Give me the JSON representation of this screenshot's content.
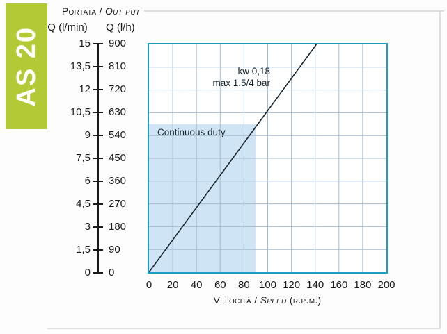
{
  "banner": {
    "label": "AS 20"
  },
  "output_scale": {
    "title_normal": "Portata / ",
    "title_italic": "Out put",
    "col_left_header": "Q (l/min)",
    "col_right_header": "Q (l/h)",
    "lmin_labels": [
      "15",
      "13,5",
      "12",
      "10,5",
      "9",
      "7,5",
      "6",
      "4,5",
      "3",
      "1,5",
      "0"
    ],
    "lh_labels": [
      "900",
      "810",
      "720",
      "630",
      "540",
      "450",
      "360",
      "270",
      "180",
      "90",
      "0"
    ]
  },
  "chart_data": {
    "type": "line",
    "title": "",
    "x_axis": {
      "label_normal": "Velocità / ",
      "label_italic": "Speed",
      "label_suffix": " (r.p.m.)",
      "min": 0,
      "max": 200,
      "ticks": [
        0,
        20,
        40,
        60,
        80,
        100,
        120,
        140,
        160,
        180,
        200
      ],
      "tick_labels": [
        "0",
        "20",
        "40",
        "60",
        "80",
        "100",
        "120",
        "140",
        "160",
        "180",
        "200"
      ]
    },
    "y_axis_left": {
      "label": "Q (l/min)",
      "min": 0,
      "max": 15,
      "ticks": [
        15,
        13.5,
        12,
        10.5,
        9,
        7.5,
        6,
        4.5,
        3,
        1.5,
        0
      ]
    },
    "y_axis_right": {
      "label": "Q (l/h)",
      "min": 0,
      "max": 900,
      "ticks": [
        900,
        810,
        720,
        630,
        540,
        450,
        360,
        270,
        180,
        90,
        0
      ]
    },
    "grid": {
      "on": true,
      "x_step": 20,
      "y_step_lh": 90
    },
    "series": [
      {
        "name": "output-vs-speed",
        "x_rpm": [
          0,
          141
        ],
        "y_lh": [
          0,
          900
        ]
      }
    ],
    "annotation": {
      "line1": "kw 0,18",
      "line2": "max 1,5/4 bar"
    },
    "region": {
      "label": "Continuous duty",
      "x_range_rpm": [
        0,
        90
      ],
      "y_range_lh": [
        0,
        585
      ]
    }
  },
  "colors": {
    "banner": "#b3c936",
    "chart_border": "#1b9dc4",
    "grid_line": "#a4bcd0",
    "duty_region": "#cfe4f4",
    "curve": "#16242e",
    "text": "#1a1a1a",
    "page_line": "#dedede"
  }
}
